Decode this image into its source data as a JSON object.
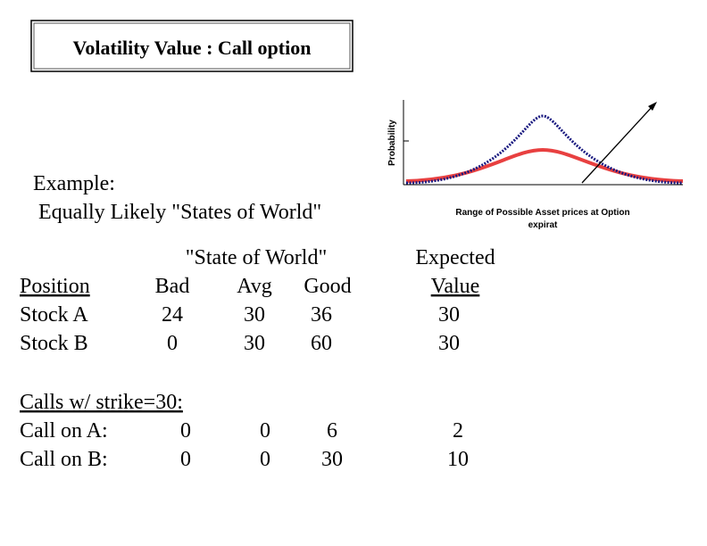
{
  "title": "Volatility Value :  Call option",
  "chart": {
    "y_axis_label": "Probability",
    "x_axis_label_lines": [
      "Range of Possible Asset prices at Option",
      "expirat"
    ]
  },
  "example": {
    "heading": "Example:",
    "text": "Equally Likely \"States of World\""
  },
  "table": {
    "group_header": "\"State of World\"",
    "expected_header": [
      "Expected",
      "Value"
    ],
    "columns": [
      "Position",
      "Bad",
      "Avg",
      "Good"
    ],
    "rows": [
      [
        "Stock A",
        24,
        30,
        36,
        30
      ],
      [
        "Stock B",
        0,
        30,
        60,
        30
      ]
    ]
  },
  "calls": {
    "heading": "Calls w/ strike=30:",
    "rows": [
      [
        "Call on A:",
        0,
        0,
        6,
        2
      ],
      [
        "Call on B:",
        0,
        0,
        30,
        10
      ]
    ]
  }
}
